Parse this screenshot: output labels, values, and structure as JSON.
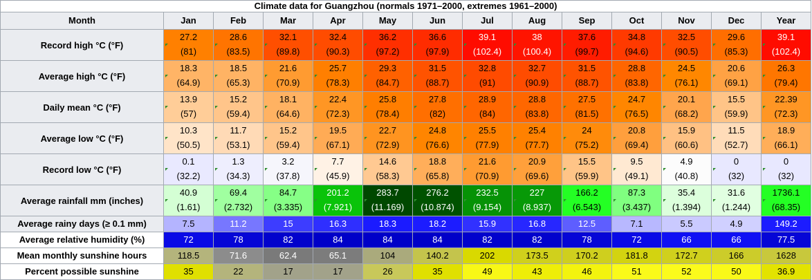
{
  "caption": "Climate data for Guangzhou (normals 1971–2000, extremes 1961–2000)",
  "header": {
    "month_label": "Month",
    "months": [
      "Jan",
      "Feb",
      "Mar",
      "Apr",
      "May",
      "Jun",
      "Jul",
      "Aug",
      "Sep",
      "Oct",
      "Nov",
      "Dec",
      "Year"
    ]
  },
  "dual_rows": [
    {
      "label": "Record high °C (°F)",
      "c": [
        "27.2",
        "28.6",
        "32.1",
        "32.4",
        "36.2",
        "36.6",
        "39.1",
        "38",
        "37.6",
        "34.8",
        "32.5",
        "29.6",
        "39.1"
      ],
      "f": [
        "(81)",
        "(83.5)",
        "(89.8)",
        "(90.3)",
        "(97.2)",
        "(97.9)",
        "(102.4)",
        "(100.4)",
        "(99.7)",
        "(94.6)",
        "(90.5)",
        "(85.3)",
        "(102.4)"
      ],
      "bg": [
        "#ff8000",
        "#ff7400",
        "#ff4f00",
        "#ff4c00",
        "#ff2f00",
        "#ff2c00",
        "#ff0c00",
        "#ff1400",
        "#ff1c00",
        "#ff3a00",
        "#ff4d00",
        "#ff6e00",
        "#ff0c00"
      ],
      "fg": [
        "#000000",
        "#000000",
        "#000000",
        "#000000",
        "#000000",
        "#000000",
        "#ffffff",
        "#ffffff",
        "#000000",
        "#000000",
        "#000000",
        "#000000",
        "#ffffff"
      ]
    },
    {
      "label": "Average high °C (°F)",
      "c": [
        "18.3",
        "18.5",
        "21.6",
        "25.7",
        "29.3",
        "31.5",
        "32.8",
        "32.7",
        "31.5",
        "28.8",
        "24.5",
        "20.6",
        "26.3"
      ],
      "f": [
        "(64.9)",
        "(65.3)",
        "(70.9)",
        "(78.3)",
        "(84.7)",
        "(88.7)",
        "(91)",
        "(90.9)",
        "(88.7)",
        "(83.8)",
        "(76.1)",
        "(69.1)",
        "(79.4)"
      ],
      "bg": [
        "#ffb466",
        "#ffb364",
        "#ff9b31",
        "#ff7f00",
        "#ff6100",
        "#ff5300",
        "#ff4b00",
        "#ff4c00",
        "#ff5300",
        "#ff6600",
        "#ff8700",
        "#ffa244",
        "#ff7600"
      ],
      "fg": [
        "#000000",
        "#000000",
        "#000000",
        "#000000",
        "#000000",
        "#000000",
        "#000000",
        "#000000",
        "#000000",
        "#000000",
        "#000000",
        "#000000",
        "#000000"
      ]
    },
    {
      "label": "Daily mean °C (°F)",
      "c": [
        "13.9",
        "15.2",
        "18.1",
        "22.4",
        "25.8",
        "27.8",
        "28.9",
        "28.8",
        "27.5",
        "24.7",
        "20.1",
        "15.5",
        "22.39"
      ],
      "f": [
        "(57)",
        "(59.4)",
        "(64.6)",
        "(72.3)",
        "(78.4)",
        "(82)",
        "(84)",
        "(83.8)",
        "(81.5)",
        "(76.5)",
        "(68.2)",
        "(59.9)",
        "(72.3)"
      ],
      "bg": [
        "#ffcd98",
        "#ffc58a",
        "#ffb262",
        "#ff9624",
        "#ff7e00",
        "#ff6f00",
        "#ff6600",
        "#ff6700",
        "#ff7100",
        "#ff8600",
        "#ffa54c",
        "#ffc487",
        "#ff9624"
      ],
      "fg": [
        "#000000",
        "#000000",
        "#000000",
        "#000000",
        "#000000",
        "#000000",
        "#000000",
        "#000000",
        "#000000",
        "#000000",
        "#000000",
        "#000000",
        "#000000"
      ]
    },
    {
      "label": "Average low °C (°F)",
      "c": [
        "10.3",
        "11.7",
        "15.2",
        "19.5",
        "22.7",
        "24.8",
        "25.5",
        "25.4",
        "24",
        "20.8",
        "15.9",
        "11.5",
        "18.9"
      ],
      "f": [
        "(50.5)",
        "(53.1)",
        "(59.4)",
        "(67.1)",
        "(72.9)",
        "(76.6)",
        "(77.9)",
        "(77.7)",
        "(75.2)",
        "(69.4)",
        "(60.6)",
        "(52.7)",
        "(66.1)"
      ],
      "bg": [
        "#ffe4c8",
        "#ffdab6",
        "#ffc58a",
        "#ffab55",
        "#ff9420",
        "#ff8500",
        "#ff8000",
        "#ff8100",
        "#ff8b0b",
        "#ff9f3d",
        "#ffc183",
        "#ffdcb9",
        "#ffae59"
      ],
      "fg": [
        "#000000",
        "#000000",
        "#000000",
        "#000000",
        "#000000",
        "#000000",
        "#000000",
        "#000000",
        "#000000",
        "#000000",
        "#000000",
        "#000000",
        "#000000"
      ]
    },
    {
      "label": "Record low °C (°F)",
      "c": [
        "0.1",
        "1.3",
        "3.2",
        "7.7",
        "14.6",
        "18.8",
        "21.6",
        "20.9",
        "15.5",
        "9.5",
        "4.9",
        "0",
        "0"
      ],
      "f": [
        "(32.2)",
        "(34.3)",
        "(37.8)",
        "(45.9)",
        "(58.3)",
        "(65.8)",
        "(70.9)",
        "(69.6)",
        "(59.9)",
        "(49.1)",
        "(40.8)",
        "(32)",
        "(32)"
      ],
      "bg": [
        "#e9e9ff",
        "#eeeefe",
        "#f6f6fc",
        "#fff2e5",
        "#ffc992",
        "#ffae5a",
        "#ff9b31",
        "#ffa03b",
        "#ffc487",
        "#ffe9d2",
        "#fcfcfc",
        "#e8e8ff",
        "#e8e8ff"
      ],
      "fg": [
        "#000000",
        "#000000",
        "#000000",
        "#000000",
        "#000000",
        "#000000",
        "#000000",
        "#000000",
        "#000000",
        "#000000",
        "#000000",
        "#000000",
        "#000000"
      ]
    },
    {
      "label": "Average rainfall mm (inches)",
      "c": [
        "40.9",
        "69.4",
        "84.7",
        "201.2",
        "283.7",
        "276.2",
        "232.5",
        "227",
        "166.2",
        "87.3",
        "35.4",
        "31.6",
        "1736.1"
      ],
      "f": [
        "(1.61)",
        "(2.732)",
        "(3.335)",
        "(7.921)",
        "(11.169)",
        "(10.874)",
        "(9.154)",
        "(8.937)",
        "(6.543)",
        "(3.437)",
        "(1.394)",
        "(1.244)",
        "(68.35)"
      ],
      "bg": [
        "#d4ffd4",
        "#a0ffa0",
        "#86ff86",
        "#0ac30a",
        "#004800",
        "#005200",
        "#069206",
        "#079907",
        "#24ff24",
        "#80ff80",
        "#dcffdc",
        "#e1ffe1",
        "#24ff24"
      ],
      "fg": [
        "#000000",
        "#000000",
        "#000000",
        "#ffffff",
        "#ffffff",
        "#ffffff",
        "#ffffff",
        "#ffffff",
        "#000000",
        "#000000",
        "#000000",
        "#000000",
        "#000000"
      ]
    }
  ],
  "single_rows": [
    {
      "label": "Average rainy days (≥ 0.1 mm)",
      "label_bg": "#eaecf0",
      "values": [
        "7.5",
        "11.2",
        "15",
        "16.3",
        "18.3",
        "18.2",
        "15.9",
        "16.8",
        "12.5",
        "7.1",
        "5.5",
        "4.9",
        "149.2"
      ],
      "bg": [
        "#b4b4ff",
        "#7777ff",
        "#3d3dff",
        "#2f2fff",
        "#1b1bff",
        "#1c1cff",
        "#3131ff",
        "#2727ff",
        "#5e5eff",
        "#b8b8ff",
        "#cacaff",
        "#d0d0ff",
        "#1c1cff"
      ],
      "fg": [
        "#000000",
        "#ffffff",
        "#ffffff",
        "#ffffff",
        "#ffffff",
        "#ffffff",
        "#ffffff",
        "#ffffff",
        "#ffffff",
        "#000000",
        "#000000",
        "#000000",
        "#ffffff"
      ]
    },
    {
      "label": "Average relative humidity (%)",
      "label_bg": "#ffffff",
      "values": [
        "72",
        "78",
        "82",
        "84",
        "84",
        "84",
        "82",
        "82",
        "78",
        "72",
        "66",
        "66",
        "77.5"
      ],
      "bg": [
        "#0a0ae6",
        "#0606d6",
        "#0202cc",
        "#0000c8",
        "#0000c8",
        "#0000c8",
        "#0202cc",
        "#0202cc",
        "#0606d6",
        "#0a0ae6",
        "#1010f4",
        "#1010f4",
        "#0606d6"
      ],
      "fg": [
        "#ffffff",
        "#ffffff",
        "#ffffff",
        "#ffffff",
        "#ffffff",
        "#ffffff",
        "#ffffff",
        "#ffffff",
        "#ffffff",
        "#ffffff",
        "#ffffff",
        "#ffffff",
        "#ffffff"
      ]
    },
    {
      "label": "Mean monthly sunshine hours",
      "label_bg": "#ffffff",
      "values": [
        "118.5",
        "71.6",
        "62.4",
        "65.1",
        "104",
        "140.2",
        "202",
        "173.5",
        "170.2",
        "181.8",
        "172.7",
        "166",
        "1628"
      ],
      "bg": [
        "#b4b47c",
        "#8c8c8c",
        "#7a7a7a",
        "#7c7c7c",
        "#aaaa7c",
        "#c4c44c",
        "#d9d900",
        "#d0d01c",
        "#cfcf1e",
        "#d3d310",
        "#d0d01d",
        "#cccc2a",
        "#c8c83c"
      ],
      "fg": [
        "#000000",
        "#ffffff",
        "#ffffff",
        "#ffffff",
        "#000000",
        "#000000",
        "#000000",
        "#000000",
        "#000000",
        "#000000",
        "#000000",
        "#000000",
        "#000000"
      ]
    },
    {
      "label": "Percent possible sunshine",
      "label_bg": "#ffffff",
      "values": [
        "35",
        "22",
        "17",
        "17",
        "26",
        "35",
        "49",
        "43",
        "46",
        "51",
        "52",
        "50",
        "36.9"
      ],
      "bg": [
        "#e0e000",
        "#b4b47c",
        "#a2a28a",
        "#a2a28a",
        "#c8c85a",
        "#e0e000",
        "#f8f816",
        "#eeee08",
        "#f3f30e",
        "#fafa1a",
        "#fbfb1c",
        "#f9f918",
        "#e3e300"
      ],
      "fg": [
        "#000000",
        "#000000",
        "#000000",
        "#000000",
        "#000000",
        "#000000",
        "#000000",
        "#000000",
        "#000000",
        "#000000",
        "#000000",
        "#000000",
        "#000000"
      ]
    }
  ]
}
